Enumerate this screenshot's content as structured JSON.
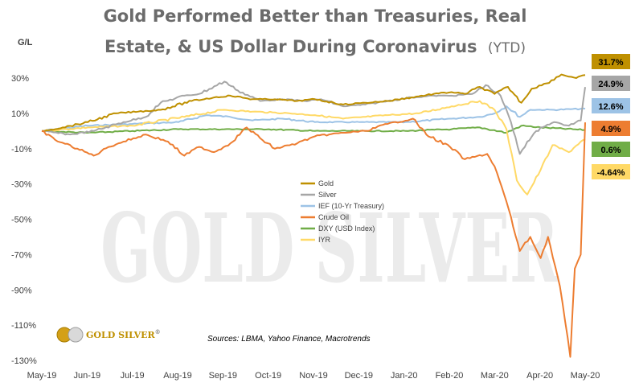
{
  "header": {
    "title_line1": "Gold Performed Better than Treasuries, Real",
    "title_line2": "Estate, & US Dollar During Coronavirus",
    "title_suffix": "(YTD)"
  },
  "watermark": {
    "text": "GOLD SILVER"
  },
  "logo": {
    "text": "GOLD SILVER",
    "mark": "®"
  },
  "source_note": "Sources: LBMA, Yahoo Finance, Macrotrends",
  "colors": {
    "Gold": "#BF9000",
    "Silver": "#A6A6A6",
    "IEF": "#9DC3E6",
    "Crude": "#ED7D31",
    "DXY": "#70AD47",
    "IYR": "#FFD966",
    "text": "#404040"
  },
  "chart_data": {
    "type": "line",
    "ylabel": "G/L",
    "ylim": [
      -130,
      30
    ],
    "yticks": [
      30,
      10,
      -10,
      -30,
      -50,
      -70,
      -90,
      -110,
      -130
    ],
    "ytick_labels": [
      "30%",
      "10%",
      "-10%",
      "-30%",
      "-50%",
      "-70%",
      "-90%",
      "-110%",
      "-130%"
    ],
    "xlim": [
      "2019-05-01",
      "2020-05-01"
    ],
    "x_tick_labels": [
      "May-19",
      "Jun-19",
      "Jul-19",
      "Aug-19",
      "Sep-19",
      "Oct-19",
      "Nov-19",
      "Dec-19",
      "Jan-20",
      "Feb-20",
      "Mar-20",
      "Apr-20",
      "May-20"
    ],
    "legend": {
      "placement": "center"
    },
    "series": [
      {
        "name": "Gold",
        "color": "#BF9000",
        "end_label": "31.7%",
        "end_label_text_color": "#000000",
        "points": [
          [
            "2019-05-01",
            0
          ],
          [
            "2019-05-15",
            2
          ],
          [
            "2019-06-01",
            5
          ],
          [
            "2019-06-20",
            10
          ],
          [
            "2019-07-05",
            11
          ],
          [
            "2019-07-20",
            12
          ],
          [
            "2019-08-10",
            17
          ],
          [
            "2019-08-25",
            19
          ],
          [
            "2019-09-05",
            20
          ],
          [
            "2019-09-20",
            18
          ],
          [
            "2019-10-05",
            18
          ],
          [
            "2019-10-20",
            17
          ],
          [
            "2019-11-01",
            18
          ],
          [
            "2019-11-20",
            15
          ],
          [
            "2019-12-05",
            16
          ],
          [
            "2019-12-20",
            17
          ],
          [
            "2020-01-05",
            19
          ],
          [
            "2020-01-20",
            21
          ],
          [
            "2020-02-01",
            22
          ],
          [
            "2020-02-10",
            21
          ],
          [
            "2020-02-20",
            25
          ],
          [
            "2020-03-01",
            21
          ],
          [
            "2020-03-10",
            25
          ],
          [
            "2020-03-19",
            16
          ],
          [
            "2020-03-26",
            24
          ],
          [
            "2020-04-05",
            27
          ],
          [
            "2020-04-15",
            32
          ],
          [
            "2020-04-25",
            30
          ],
          [
            "2020-05-01",
            31.7
          ]
        ]
      },
      {
        "name": "Silver",
        "color": "#A6A6A6",
        "end_label": "24.9%",
        "end_label_text_color": "#000000",
        "points": [
          [
            "2019-05-01",
            0
          ],
          [
            "2019-05-20",
            -2
          ],
          [
            "2019-06-05",
            0
          ],
          [
            "2019-06-25",
            5
          ],
          [
            "2019-07-10",
            8
          ],
          [
            "2019-07-20",
            16
          ],
          [
            "2019-08-05",
            20
          ],
          [
            "2019-08-15",
            21
          ],
          [
            "2019-09-01",
            28
          ],
          [
            "2019-09-10",
            23
          ],
          [
            "2019-09-25",
            17
          ],
          [
            "2019-10-10",
            18
          ],
          [
            "2019-10-25",
            17
          ],
          [
            "2019-11-05",
            18
          ],
          [
            "2019-11-20",
            14
          ],
          [
            "2019-12-05",
            15
          ],
          [
            "2019-12-20",
            17
          ],
          [
            "2020-01-05",
            19
          ],
          [
            "2020-01-20",
            20
          ],
          [
            "2020-02-01",
            20
          ],
          [
            "2020-02-15",
            21
          ],
          [
            "2020-02-24",
            26
          ],
          [
            "2020-03-05",
            20
          ],
          [
            "2020-03-12",
            5
          ],
          [
            "2020-03-18",
            -13
          ],
          [
            "2020-03-23",
            -6
          ],
          [
            "2020-04-01",
            2
          ],
          [
            "2020-04-10",
            5
          ],
          [
            "2020-04-20",
            3
          ],
          [
            "2020-04-28",
            6
          ],
          [
            "2020-05-01",
            24.9
          ]
        ]
      },
      {
        "name": "IEF (10-Yr Treasury)",
        "color": "#9DC3E6",
        "end_label": "12.6%",
        "end_label_text_color": "#000000",
        "points": [
          [
            "2019-05-01",
            0
          ],
          [
            "2019-06-01",
            3
          ],
          [
            "2019-07-01",
            4
          ],
          [
            "2019-08-01",
            5
          ],
          [
            "2019-08-20",
            9
          ],
          [
            "2019-09-05",
            8
          ],
          [
            "2019-09-20",
            6
          ],
          [
            "2019-10-10",
            7
          ],
          [
            "2019-11-01",
            5
          ],
          [
            "2019-12-01",
            5
          ],
          [
            "2020-01-01",
            5
          ],
          [
            "2020-02-01",
            7
          ],
          [
            "2020-02-20",
            8
          ],
          [
            "2020-03-01",
            10
          ],
          [
            "2020-03-09",
            14
          ],
          [
            "2020-03-18",
            8
          ],
          [
            "2020-03-25",
            12
          ],
          [
            "2020-04-10",
            12
          ],
          [
            "2020-05-01",
            12.6
          ]
        ]
      },
      {
        "name": "Crude Oil",
        "color": "#ED7D31",
        "end_label": "4.9%",
        "end_label_text_color": "#000000",
        "points": [
          [
            "2019-05-01",
            0
          ],
          [
            "2019-05-10",
            -5
          ],
          [
            "2019-05-25",
            -10
          ],
          [
            "2019-06-05",
            -14
          ],
          [
            "2019-06-15",
            -9
          ],
          [
            "2019-06-25",
            -6
          ],
          [
            "2019-07-10",
            -2
          ],
          [
            "2019-07-25",
            -6
          ],
          [
            "2019-08-05",
            -14
          ],
          [
            "2019-08-15",
            -9
          ],
          [
            "2019-08-25",
            -12
          ],
          [
            "2019-09-05",
            -7
          ],
          [
            "2019-09-16",
            2
          ],
          [
            "2019-09-25",
            -4
          ],
          [
            "2019-10-05",
            -10
          ],
          [
            "2019-10-20",
            -7
          ],
          [
            "2019-11-01",
            -3
          ],
          [
            "2019-11-20",
            -1
          ],
          [
            "2019-12-05",
            0
          ],
          [
            "2019-12-20",
            4
          ],
          [
            "2020-01-06",
            7
          ],
          [
            "2020-01-15",
            -2
          ],
          [
            "2020-01-31",
            -9
          ],
          [
            "2020-02-10",
            -16
          ],
          [
            "2020-02-25",
            -13
          ],
          [
            "2020-03-01",
            -20
          ],
          [
            "2020-03-09",
            -40
          ],
          [
            "2020-03-18",
            -68
          ],
          [
            "2020-03-25",
            -60
          ],
          [
            "2020-04-01",
            -72
          ],
          [
            "2020-04-06",
            -60
          ],
          [
            "2020-04-14",
            -88
          ],
          [
            "2020-04-21",
            -128
          ],
          [
            "2020-04-24",
            -78
          ],
          [
            "2020-04-28",
            -70
          ],
          [
            "2020-05-01",
            4.9
          ]
        ]
      },
      {
        "name": "DXY (USD Index)",
        "color": "#70AD47",
        "end_label": "0.6%",
        "end_label_text_color": "#000000",
        "points": [
          [
            "2019-05-01",
            0
          ],
          [
            "2019-06-01",
            -1
          ],
          [
            "2019-07-01",
            0
          ],
          [
            "2019-08-01",
            1
          ],
          [
            "2019-09-01",
            1
          ],
          [
            "2019-10-01",
            1
          ],
          [
            "2019-11-01",
            0
          ],
          [
            "2019-12-01",
            0
          ],
          [
            "2020-01-01",
            0
          ],
          [
            "2020-02-01",
            1
          ],
          [
            "2020-02-20",
            2
          ],
          [
            "2020-03-09",
            -1
          ],
          [
            "2020-03-19",
            3
          ],
          [
            "2020-04-01",
            2
          ],
          [
            "2020-05-01",
            0.6
          ]
        ]
      },
      {
        "name": "IYR",
        "color": "#FFD966",
        "end_label": "-4.64%",
        "end_label_text_color": "#000000",
        "points": [
          [
            "2019-05-01",
            0
          ],
          [
            "2019-06-01",
            2
          ],
          [
            "2019-07-01",
            3
          ],
          [
            "2019-08-05",
            8
          ],
          [
            "2019-09-01",
            12
          ],
          [
            "2019-09-20",
            11
          ],
          [
            "2019-10-15",
            10
          ],
          [
            "2019-11-01",
            9
          ],
          [
            "2019-11-20",
            7
          ],
          [
            "2019-12-05",
            8
          ],
          [
            "2019-12-20",
            9
          ],
          [
            "2020-01-10",
            10
          ],
          [
            "2020-02-01",
            14
          ],
          [
            "2020-02-20",
            17
          ],
          [
            "2020-03-01",
            12
          ],
          [
            "2020-03-09",
            1
          ],
          [
            "2020-03-16",
            -28
          ],
          [
            "2020-03-23",
            -36
          ],
          [
            "2020-04-01",
            -22
          ],
          [
            "2020-04-09",
            -8
          ],
          [
            "2020-04-20",
            -12
          ],
          [
            "2020-04-28",
            -6
          ],
          [
            "2020-05-01",
            -4.64
          ]
        ]
      }
    ]
  }
}
